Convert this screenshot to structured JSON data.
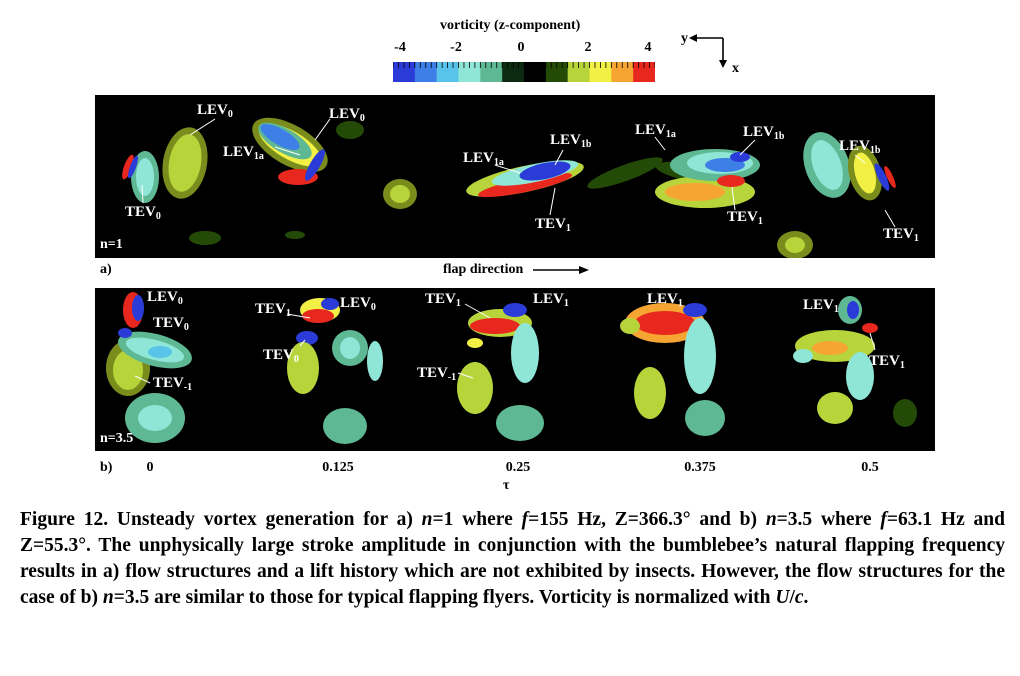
{
  "colorbar": {
    "title": "vorticity (z-component)",
    "ticks": [
      "-4",
      "-2",
      "0",
      "2",
      "4"
    ],
    "colors": [
      "#2a3bd8",
      "#3d7fe6",
      "#58c4ea",
      "#8fe6d6",
      "#5fb894",
      "#0b2a10",
      "#000000",
      "#244a08",
      "#b7d43a",
      "#f2f045",
      "#f6a533",
      "#e8281e"
    ]
  },
  "axes": {
    "y_label": "y",
    "x_label": "x"
  },
  "panel_a": {
    "letter": "a)",
    "n_label": "n=1",
    "labels": [
      {
        "base": "LEV",
        "sub": "0"
      },
      {
        "base": "LEV",
        "sub": "0"
      },
      {
        "base": "LEV",
        "sub": "1a"
      },
      {
        "base": "TEV",
        "sub": "0"
      },
      {
        "base": "LEV",
        "sub": "1a"
      },
      {
        "base": "LEV",
        "sub": "1b"
      },
      {
        "base": "TEV",
        "sub": "1"
      },
      {
        "base": "LEV",
        "sub": "1a"
      },
      {
        "base": "LEV",
        "sub": "1b"
      },
      {
        "base": "TEV",
        "sub": "1"
      },
      {
        "base": "LEV",
        "sub": "1b"
      },
      {
        "base": "TEV",
        "sub": "1"
      }
    ]
  },
  "flap_direction": "flap direction",
  "panel_b": {
    "letter": "b)",
    "n_label": "n=3.5",
    "labels": [
      {
        "base": "LEV",
        "sub": "0"
      },
      {
        "base": "TEV",
        "sub": "0"
      },
      {
        "base": "TEV",
        "sub": "-1"
      },
      {
        "base": "TEV",
        "sub": "1"
      },
      {
        "base": "LEV",
        "sub": "0"
      },
      {
        "base": "TEV",
        "sub": "0"
      },
      {
        "base": "TEV",
        "sub": "1"
      },
      {
        "base": "LEV",
        "sub": "1"
      },
      {
        "base": "TEV",
        "sub": "-1"
      },
      {
        "base": "LEV",
        "sub": "1"
      },
      {
        "base": "LEV",
        "sub": "1"
      },
      {
        "base": "TEV",
        "sub": "1"
      }
    ]
  },
  "tau": {
    "ticks": [
      "0",
      "0.125",
      "0.25",
      "0.375",
      "0.5"
    ],
    "label": "τ"
  },
  "caption": {
    "p1": "Figure 12. Unsteady vortex generation for a) ",
    "n1": "n",
    "p2": "=1 where ",
    "f1": "f",
    "p3": "=155 Hz, Z=366.3° and b) ",
    "n2": "n",
    "p4": "=3.5 where ",
    "f2": "f",
    "p5": "=63.1 Hz and Z=55.3°. The unphysically large stroke amplitude in conjunction with the bumblebee’s natural flapping frequency results in a) flow structures and a lift history which are not exhibited by insects. However, the flow structures for the case of b) ",
    "n3": "n",
    "p6": "=3.5 are similar to those for typical flapping flyers. Vorticity is normalized with ",
    "u": "U",
    "slash": "/",
    "c": "c",
    "end": "."
  }
}
